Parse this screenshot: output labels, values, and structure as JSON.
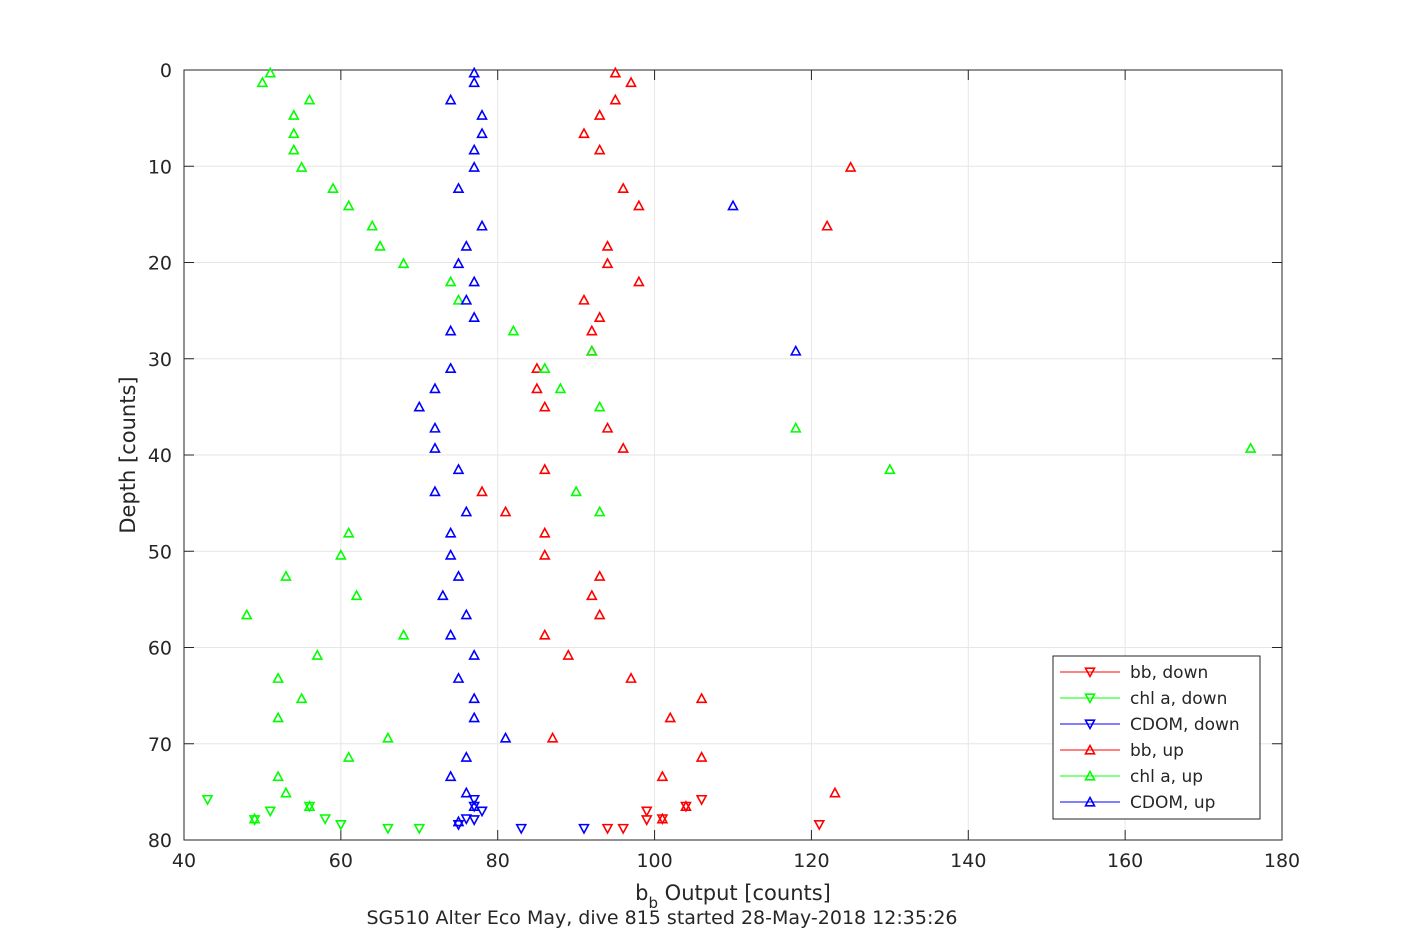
{
  "chart_data": {
    "type": "scatter",
    "caption": "SG510 Alter Eco May, dive 815 started 28-May-2018 12:35:26",
    "xlabel_main": "b",
    "xlabel_sub": "b",
    "xlabel_rest": " Output [counts]",
    "ylabel": "Depth [counts]",
    "xlim": [
      40,
      180
    ],
    "ylim": [
      0,
      80
    ],
    "y_reversed": true,
    "xticks": [
      "40",
      "60",
      "80",
      "100",
      "120",
      "140",
      "160",
      "180"
    ],
    "yticks": [
      "0",
      "10",
      "20",
      "30",
      "40",
      "50",
      "60",
      "70",
      "80"
    ],
    "grid": true,
    "legend_placement": "bottom-right",
    "colors": {
      "bb": "#ff0000",
      "chl": "#00ff00",
      "cdom": "#0000ff"
    },
    "series": [
      {
        "name": "bb, down",
        "color": "#ff0000",
        "marker": "triangle-down",
        "points": [
          [
            106,
            75.8
          ],
          [
            99,
            77.0
          ],
          [
            104,
            76.5
          ],
          [
            99,
            77.9
          ],
          [
            101,
            77.8
          ],
          [
            121,
            78.4
          ],
          [
            94,
            78.8
          ],
          [
            96,
            78.8
          ]
        ]
      },
      {
        "name": "chl a, down",
        "color": "#00ff00",
        "marker": "triangle-down",
        "points": [
          [
            43,
            75.8
          ],
          [
            51,
            77.0
          ],
          [
            56,
            76.5
          ],
          [
            49,
            77.9
          ],
          [
            58,
            77.8
          ],
          [
            60,
            78.4
          ],
          [
            66,
            78.8
          ],
          [
            70,
            78.8
          ]
        ]
      },
      {
        "name": "CDOM, down",
        "color": "#0000ff",
        "marker": "triangle-down",
        "points": [
          [
            77,
            75.8
          ],
          [
            78,
            77.0
          ],
          [
            77,
            76.5
          ],
          [
            77,
            77.9
          ],
          [
            76,
            77.8
          ],
          [
            75,
            78.4
          ],
          [
            83,
            78.8
          ],
          [
            91,
            78.8
          ]
        ]
      },
      {
        "name": "bb, up",
        "color": "#ff0000",
        "marker": "triangle-up",
        "points": [
          [
            95,
            0.3
          ],
          [
            97,
            1.3
          ],
          [
            95,
            3.1
          ],
          [
            93,
            4.7
          ],
          [
            91,
            6.6
          ],
          [
            93,
            8.3
          ],
          [
            125,
            10.1
          ],
          [
            96,
            12.3
          ],
          [
            98,
            14.1
          ],
          [
            122,
            16.2
          ],
          [
            94,
            18.3
          ],
          [
            94,
            20.1
          ],
          [
            98,
            22.0
          ],
          [
            91,
            23.9
          ],
          [
            93,
            25.7
          ],
          [
            92,
            27.1
          ],
          [
            92,
            29.2
          ],
          [
            85,
            31.0
          ],
          [
            85,
            33.1
          ],
          [
            86,
            35.0
          ],
          [
            94,
            37.2
          ],
          [
            96,
            39.3
          ],
          [
            86,
            41.5
          ],
          [
            78,
            43.8
          ],
          [
            81,
            45.9
          ],
          [
            86,
            48.1
          ],
          [
            86,
            50.4
          ],
          [
            93,
            52.6
          ],
          [
            92,
            54.6
          ],
          [
            93,
            56.6
          ],
          [
            86,
            58.7
          ],
          [
            89,
            60.8
          ],
          [
            97,
            63.2
          ],
          [
            106,
            65.3
          ],
          [
            102,
            67.3
          ],
          [
            87,
            69.4
          ],
          [
            106,
            71.4
          ],
          [
            101,
            73.4
          ],
          [
            123,
            75.1
          ],
          [
            104,
            76.5
          ],
          [
            101,
            77.8
          ]
        ]
      },
      {
        "name": "chl a, up",
        "color": "#00ff00",
        "marker": "triangle-up",
        "points": [
          [
            51,
            0.3
          ],
          [
            50,
            1.3
          ],
          [
            56,
            3.1
          ],
          [
            54,
            4.7
          ],
          [
            54,
            6.6
          ],
          [
            54,
            8.3
          ],
          [
            55,
            10.1
          ],
          [
            59,
            12.3
          ],
          [
            61,
            14.1
          ],
          [
            64,
            16.2
          ],
          [
            65,
            18.3
          ],
          [
            68,
            20.1
          ],
          [
            74,
            22.0
          ],
          [
            75,
            23.9
          ],
          [
            82,
            27.1
          ],
          [
            92,
            29.2
          ],
          [
            86,
            31.0
          ],
          [
            88,
            33.1
          ],
          [
            93,
            35.0
          ],
          [
            118,
            37.2
          ],
          [
            176,
            39.3
          ],
          [
            130,
            41.5
          ],
          [
            90,
            43.8
          ],
          [
            93,
            45.9
          ],
          [
            61,
            48.1
          ],
          [
            60,
            50.4
          ],
          [
            53,
            52.6
          ],
          [
            62,
            54.6
          ],
          [
            48,
            56.6
          ],
          [
            68,
            58.7
          ],
          [
            57,
            60.8
          ],
          [
            52,
            63.2
          ],
          [
            55,
            65.3
          ],
          [
            52,
            67.3
          ],
          [
            66,
            69.4
          ],
          [
            61,
            71.4
          ],
          [
            52,
            73.4
          ],
          [
            53,
            75.1
          ],
          [
            56,
            76.5
          ],
          [
            49,
            77.8
          ]
        ]
      },
      {
        "name": "CDOM, up",
        "color": "#0000ff",
        "marker": "triangle-up",
        "points": [
          [
            77,
            0.3
          ],
          [
            77,
            1.3
          ],
          [
            74,
            3.1
          ],
          [
            78,
            4.7
          ],
          [
            78,
            6.6
          ],
          [
            77,
            8.3
          ],
          [
            77,
            10.1
          ],
          [
            75,
            12.3
          ],
          [
            110,
            14.1
          ],
          [
            78,
            16.2
          ],
          [
            76,
            18.3
          ],
          [
            75,
            20.1
          ],
          [
            77,
            22.0
          ],
          [
            76,
            23.9
          ],
          [
            77,
            25.7
          ],
          [
            74,
            27.1
          ],
          [
            118,
            29.2
          ],
          [
            74,
            31.0
          ],
          [
            72,
            33.1
          ],
          [
            70,
            35.0
          ],
          [
            72,
            37.2
          ],
          [
            72,
            39.3
          ],
          [
            75,
            41.5
          ],
          [
            72,
            43.8
          ],
          [
            76,
            45.9
          ],
          [
            74,
            48.1
          ],
          [
            74,
            50.4
          ],
          [
            75,
            52.6
          ],
          [
            73,
            54.6
          ],
          [
            76,
            56.6
          ],
          [
            74,
            58.7
          ],
          [
            77,
            60.8
          ],
          [
            75,
            63.2
          ],
          [
            77,
            65.3
          ],
          [
            77,
            67.3
          ],
          [
            81,
            69.4
          ],
          [
            76,
            71.4
          ],
          [
            74,
            73.4
          ],
          [
            76,
            75.1
          ],
          [
            77,
            76.5
          ],
          [
            75,
            78.1
          ]
        ]
      }
    ]
  }
}
